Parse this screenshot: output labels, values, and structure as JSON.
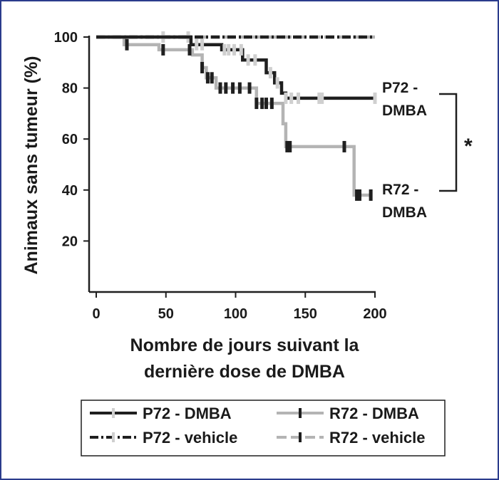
{
  "chart_data": {
    "type": "line",
    "title": "",
    "xlabel": [
      "Nombre de jours suivant la",
      "dernière dose de DMBA"
    ],
    "ylabel": "Animaux sans tumeur (%)",
    "xlim": [
      0,
      200
    ],
    "ylim": [
      0,
      100
    ],
    "xticks": [
      "0",
      "50",
      "100",
      "150",
      "200"
    ],
    "yticks": [
      "20",
      "40",
      "60",
      "80",
      "100"
    ],
    "grid": false,
    "legend_position": "bottom",
    "colors": {
      "black": "#1f1f1f",
      "gray": "#b4b4b4",
      "text": "#1a1a1a",
      "frame": "#2a3c8c"
    },
    "series": [
      {
        "name": "P72 - DMBA",
        "color": "#1f1f1f",
        "dash": "solid",
        "tick_style": "light",
        "steps": [
          [
            0,
            100
          ],
          [
            68,
            100
          ],
          [
            68,
            97
          ],
          [
            90,
            97
          ],
          [
            90,
            95
          ],
          [
            105,
            95
          ],
          [
            105,
            91
          ],
          [
            122,
            91
          ],
          [
            122,
            86
          ],
          [
            128,
            86
          ],
          [
            128,
            82
          ],
          [
            133,
            82
          ],
          [
            133,
            78
          ],
          [
            136,
            78
          ],
          [
            136,
            76
          ],
          [
            200,
            76
          ]
        ],
        "censor_x": [
          72,
          76,
          92,
          95,
          99,
          104,
          109,
          114,
          125,
          130,
          136,
          140,
          145,
          160,
          162,
          200
        ]
      },
      {
        "name": "R72 - DMBA",
        "color": "#b4b4b4",
        "dash": "solid",
        "tick_style": "dark",
        "steps": [
          [
            0,
            100
          ],
          [
            20,
            100
          ],
          [
            20,
            97
          ],
          [
            45,
            97
          ],
          [
            45,
            95
          ],
          [
            69,
            95
          ],
          [
            69,
            93
          ],
          [
            76,
            93
          ],
          [
            76,
            88
          ],
          [
            79,
            88
          ],
          [
            79,
            84
          ],
          [
            86,
            84
          ],
          [
            86,
            80
          ],
          [
            115,
            80
          ],
          [
            115,
            74
          ],
          [
            134,
            74
          ],
          [
            134,
            66
          ],
          [
            136,
            66
          ],
          [
            136,
            57
          ],
          [
            185,
            57
          ],
          [
            185,
            38
          ],
          [
            198,
            38
          ]
        ],
        "censor_x": [
          22,
          48,
          67,
          76,
          80,
          83,
          89,
          93,
          98,
          103,
          110,
          115,
          119,
          122,
          126,
          137,
          139,
          178,
          187,
          189,
          197
        ]
      },
      {
        "name": "P72 - vehicle",
        "color": "#1f1f1f",
        "dash": "dash-dot",
        "tick_style": "light",
        "steps": [
          [
            0,
            100
          ],
          [
            200,
            100
          ]
        ],
        "censor_x": [
          48,
          66
        ]
      },
      {
        "name": "R72 - vehicle",
        "color": "#b4b4b4",
        "dash": "dashed",
        "tick_style": "dark",
        "steps": [
          [
            0,
            100
          ],
          [
            200,
            100
          ]
        ],
        "censor_x": []
      }
    ],
    "annotations": [
      {
        "label_line1": "P72 -",
        "label_line2": "DMBA"
      },
      {
        "label_line1": "R72 -",
        "label_line2": "DMBA"
      },
      {
        "symbol": "*"
      }
    ]
  }
}
